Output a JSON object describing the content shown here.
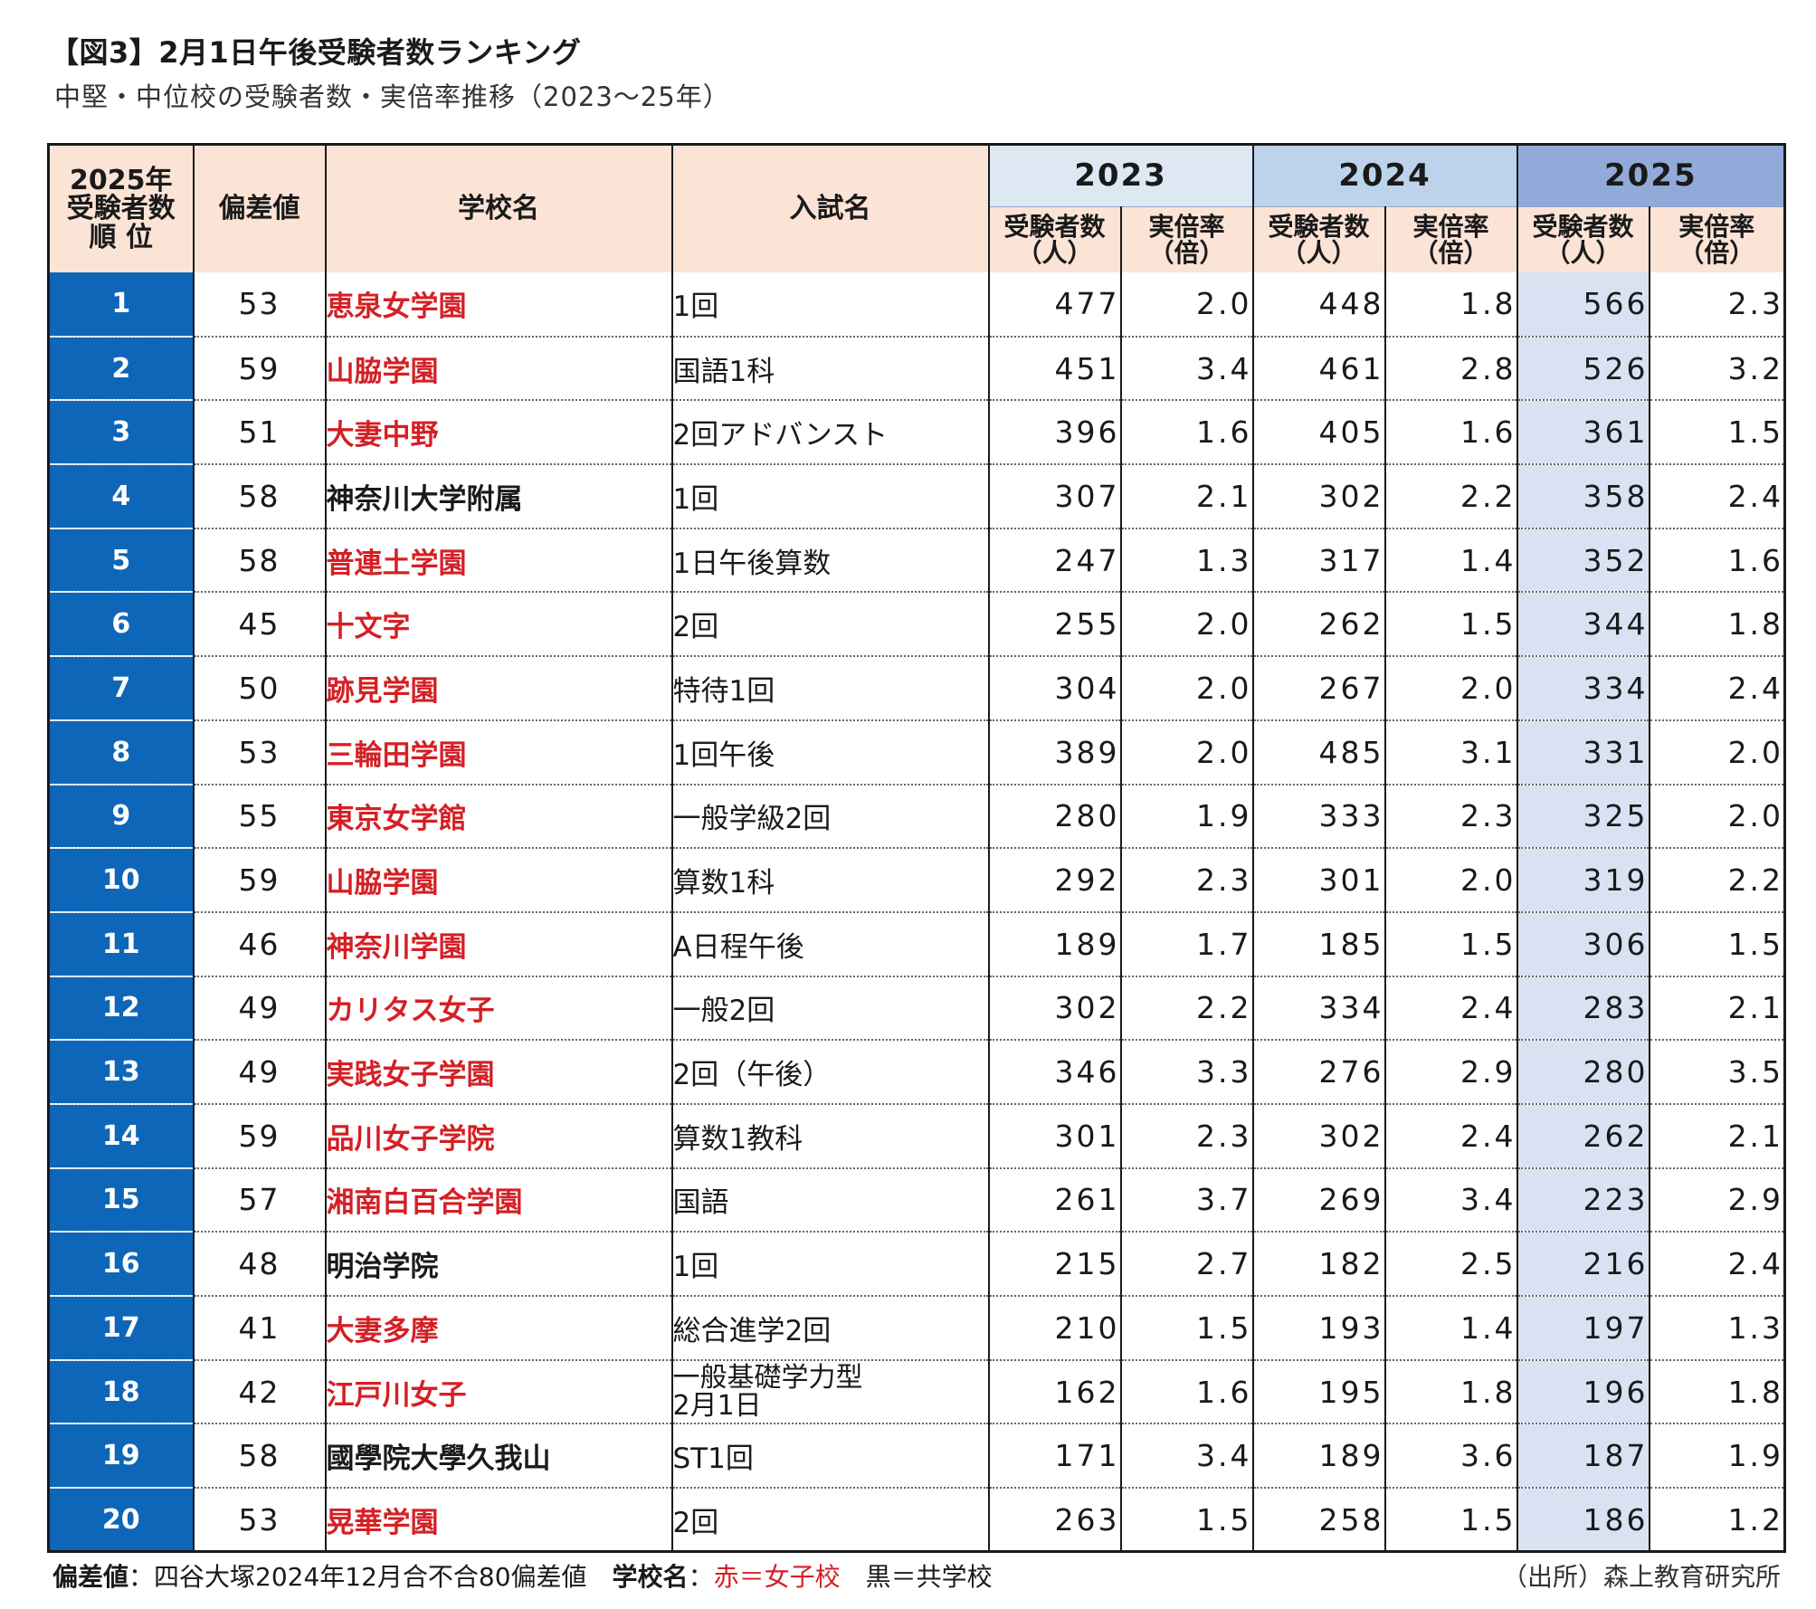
{
  "title": "【図3】2月1日午後受験者数ランキング",
  "subtitle": "中堅・中位校の受験者数・実倍率推移（2023～25年）",
  "headers": {
    "rank_line1": "2025年",
    "rank_line2": "受験者数",
    "rank_line3": "順 位",
    "deviation": "偏差値",
    "school": "学校名",
    "exam": "入試名",
    "year_2023": "2023",
    "year_2024": "2024",
    "year_2025": "2025",
    "examinees_line1": "受験者数",
    "examinees_line2": "（人）",
    "ratio_line1": "実倍率",
    "ratio_line2": "（倍）"
  },
  "rows": [
    {
      "rank": "1",
      "deviation": "53",
      "school": "恵泉女学園",
      "type": "girls",
      "exam": "1回",
      "e2023": "477",
      "r2023": "2.0",
      "e2024": "448",
      "r2024": "1.8",
      "e2025": "566",
      "r2025": "2.3"
    },
    {
      "rank": "2",
      "deviation": "59",
      "school": "山脇学園",
      "type": "girls",
      "exam": "国語1科",
      "e2023": "451",
      "r2023": "3.4",
      "e2024": "461",
      "r2024": "2.8",
      "e2025": "526",
      "r2025": "3.2"
    },
    {
      "rank": "3",
      "deviation": "51",
      "school": "大妻中野",
      "type": "girls",
      "exam": "2回アドバンスト",
      "e2023": "396",
      "r2023": "1.6",
      "e2024": "405",
      "r2024": "1.6",
      "e2025": "361",
      "r2025": "1.5"
    },
    {
      "rank": "4",
      "deviation": "58",
      "school": "神奈川大学附属",
      "type": "coed",
      "exam": "1回",
      "e2023": "307",
      "r2023": "2.1",
      "e2024": "302",
      "r2024": "2.2",
      "e2025": "358",
      "r2025": "2.4"
    },
    {
      "rank": "5",
      "deviation": "58",
      "school": "普連土学園",
      "type": "girls",
      "exam": "1日午後算数",
      "e2023": "247",
      "r2023": "1.3",
      "e2024": "317",
      "r2024": "1.4",
      "e2025": "352",
      "r2025": "1.6"
    },
    {
      "rank": "6",
      "deviation": "45",
      "school": "十文字",
      "type": "girls",
      "exam": "2回",
      "e2023": "255",
      "r2023": "2.0",
      "e2024": "262",
      "r2024": "1.5",
      "e2025": "344",
      "r2025": "1.8"
    },
    {
      "rank": "7",
      "deviation": "50",
      "school": "跡見学園",
      "type": "girls",
      "exam": "特待1回",
      "e2023": "304",
      "r2023": "2.0",
      "e2024": "267",
      "r2024": "2.0",
      "e2025": "334",
      "r2025": "2.4"
    },
    {
      "rank": "8",
      "deviation": "53",
      "school": "三輪田学園",
      "type": "girls",
      "exam": "1回午後",
      "e2023": "389",
      "r2023": "2.0",
      "e2024": "485",
      "r2024": "3.1",
      "e2025": "331",
      "r2025": "2.0"
    },
    {
      "rank": "9",
      "deviation": "55",
      "school": "東京女学館",
      "type": "girls",
      "exam": "一般学級2回",
      "e2023": "280",
      "r2023": "1.9",
      "e2024": "333",
      "r2024": "2.3",
      "e2025": "325",
      "r2025": "2.0"
    },
    {
      "rank": "10",
      "deviation": "59",
      "school": "山脇学園",
      "type": "girls",
      "exam": "算数1科",
      "e2023": "292",
      "r2023": "2.3",
      "e2024": "301",
      "r2024": "2.0",
      "e2025": "319",
      "r2025": "2.2"
    },
    {
      "rank": "11",
      "deviation": "46",
      "school": "神奈川学園",
      "type": "girls",
      "exam": "A日程午後",
      "e2023": "189",
      "r2023": "1.7",
      "e2024": "185",
      "r2024": "1.5",
      "e2025": "306",
      "r2025": "1.5"
    },
    {
      "rank": "12",
      "deviation": "49",
      "school": "カリタス女子",
      "type": "girls",
      "exam": "一般2回",
      "e2023": "302",
      "r2023": "2.2",
      "e2024": "334",
      "r2024": "2.4",
      "e2025": "283",
      "r2025": "2.1"
    },
    {
      "rank": "13",
      "deviation": "49",
      "school": "実践女子学園",
      "type": "girls",
      "exam": "2回（午後）",
      "e2023": "346",
      "r2023": "3.3",
      "e2024": "276",
      "r2024": "2.9",
      "e2025": "280",
      "r2025": "3.5"
    },
    {
      "rank": "14",
      "deviation": "59",
      "school": "品川女子学院",
      "type": "girls",
      "exam": "算数1教科",
      "e2023": "301",
      "r2023": "2.3",
      "e2024": "302",
      "r2024": "2.4",
      "e2025": "262",
      "r2025": "2.1"
    },
    {
      "rank": "15",
      "deviation": "57",
      "school": "湘南白百合学園",
      "type": "girls",
      "exam": "国語",
      "e2023": "261",
      "r2023": "3.7",
      "e2024": "269",
      "r2024": "3.4",
      "e2025": "223",
      "r2025": "2.9"
    },
    {
      "rank": "16",
      "deviation": "48",
      "school": "明治学院",
      "type": "coed",
      "exam": "1回",
      "e2023": "215",
      "r2023": "2.7",
      "e2024": "182",
      "r2024": "2.5",
      "e2025": "216",
      "r2025": "2.4"
    },
    {
      "rank": "17",
      "deviation": "41",
      "school": "大妻多摩",
      "type": "girls",
      "exam": "総合進学2回",
      "e2023": "210",
      "r2023": "1.5",
      "e2024": "193",
      "r2024": "1.4",
      "e2025": "197",
      "r2025": "1.3"
    },
    {
      "rank": "18",
      "deviation": "42",
      "school": "江戸川女子",
      "type": "girls",
      "exam": "一般基礎学力型",
      "exam2": "2月1日",
      "e2023": "162",
      "r2023": "1.6",
      "e2024": "195",
      "r2024": "1.8",
      "e2025": "196",
      "r2025": "1.8"
    },
    {
      "rank": "19",
      "deviation": "58",
      "school": "國學院大學久我山",
      "type": "coed",
      "exam": "ST1回",
      "e2023": "171",
      "r2023": "3.4",
      "e2024": "189",
      "r2024": "3.6",
      "e2025": "187",
      "r2025": "1.9"
    },
    {
      "rank": "20",
      "deviation": "53",
      "school": "晃華学園",
      "type": "girls",
      "exam": "2回",
      "e2023": "263",
      "r2023": "1.5",
      "e2024": "258",
      "r2024": "1.5",
      "e2025": "186",
      "r2025": "1.2"
    }
  ],
  "footer": {
    "deviation_label": "偏差値",
    "deviation_note": "：四谷大塚2024年12月合不合80偏差値",
    "school_label": "学校名",
    "colon": "：",
    "legend_red": "赤＝女子校",
    "legend_black": "黒＝共学校",
    "source": "（出所）森上教育研究所"
  },
  "colors": {
    "girls_school": "#d42025",
    "coed_school": "#1a1a1a",
    "rank_bg": "#0e66b8",
    "header_peach": "#fbe3d6",
    "year_2023": "#dde8f3",
    "year_2024": "#bdd3ec",
    "year_2025": "#92aad9",
    "highlight_2025": "#d9e2f3"
  }
}
